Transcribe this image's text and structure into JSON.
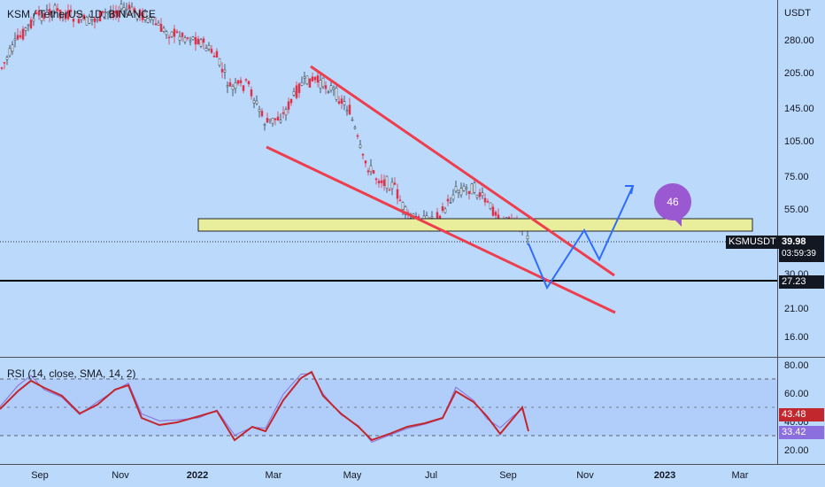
{
  "header": {
    "symbol": "KSM / TetherUS, 1D, BINANCE",
    "currency": "USDT"
  },
  "price_axis": {
    "ticks": [
      "280.00",
      "205.00",
      "145.00",
      "105.00",
      "75.00",
      "55.00",
      "30.00",
      "21.00",
      "16.00"
    ],
    "last_price": "39.98",
    "countdown": "03:59:39",
    "symbol_tag": "KSMUSDT",
    "line_level": "27.23"
  },
  "rsi": {
    "label": "RSI (14, close, SMA, 14, 2)",
    "ticks": [
      "80.00",
      "60.00",
      "40.00",
      "20.00"
    ],
    "rsi_value": "33.42",
    "sma_value": "43.48"
  },
  "time_axis": {
    "labels": [
      "Sep",
      "Nov",
      "2022",
      "Mar",
      "May",
      "Jul",
      "Sep",
      "Nov",
      "2023",
      "Mar"
    ]
  },
  "annotation": {
    "bubble_text": "46"
  },
  "colors": {
    "background": "#bbd9fb",
    "candle_up": "#ffffff",
    "candle_down": "#e0304a",
    "wedge": "#ee3d4c",
    "projection": "#2f6bff",
    "zone": "#e8ee9c",
    "rsi_line": "#8b6fde",
    "rsi_sma": "#c1272d",
    "bubble": "#9b59d1"
  }
}
